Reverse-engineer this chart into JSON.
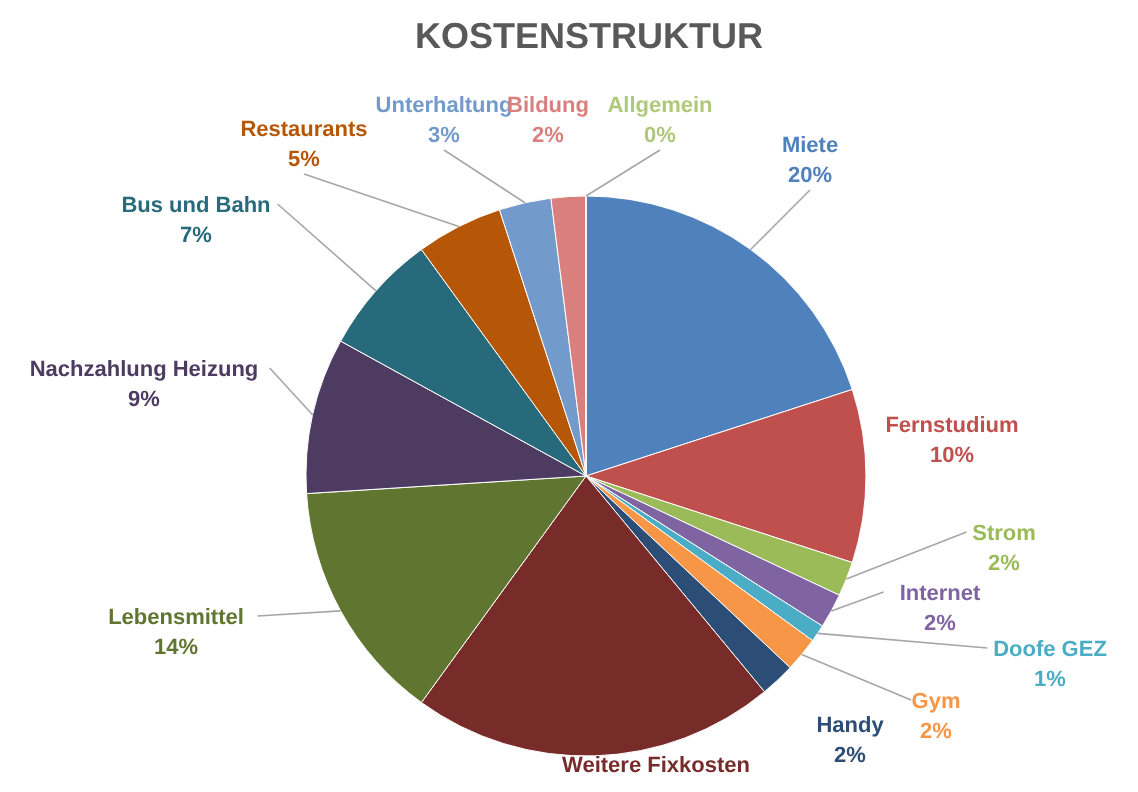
{
  "chart_data": {
    "type": "pie",
    "title": "KOSTENSTRUKTUR",
    "categories": [
      "Miete",
      "Fernstudium",
      "Strom",
      "Internet",
      "Doofe GEZ",
      "Gym",
      "Handy",
      "Weitere Fixkosten",
      "Lebensmittel",
      "Nachzahlung Heizung",
      "Bus und Bahn",
      "Restaurants",
      "Unterhaltung",
      "Bildung",
      "Allgemein"
    ],
    "values": [
      20,
      10,
      2,
      2,
      1,
      2,
      2,
      21,
      14,
      9,
      7,
      5,
      3,
      2,
      0
    ],
    "value_labels": [
      "20%",
      "10%",
      "2%",
      "2%",
      "1%",
      "2%",
      "2%",
      null,
      "14%",
      "9%",
      "7%",
      "5%",
      "3%",
      "2%",
      "0%"
    ],
    "colors": [
      "#4f81bd",
      "#c0504d",
      "#9bbb59",
      "#8064a2",
      "#4bacc6",
      "#f79646",
      "#2c4d75",
      "#772c2a",
      "#5f7530",
      "#4d3b62",
      "#276a7c",
      "#b65708",
      "#729aca",
      "#d9807e",
      "#afc97a"
    ],
    "legend": false
  }
}
